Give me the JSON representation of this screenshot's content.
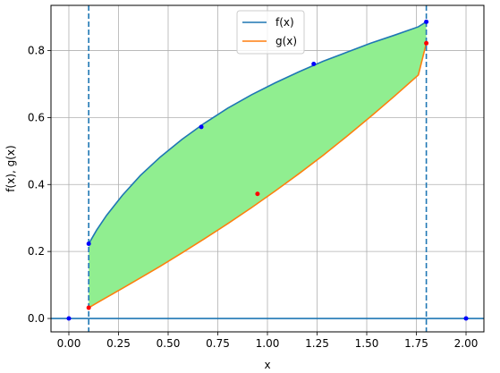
{
  "chart_data": {
    "type": "line",
    "xlabel": "x",
    "ylabel": "f(x), g(x)",
    "xlim": [
      -0.09,
      2.09
    ],
    "ylim": [
      -0.04,
      0.935
    ],
    "grid": true,
    "legend_position": "top-center",
    "x_ticks": [
      0.0,
      0.25,
      0.5,
      0.75,
      1.0,
      1.25,
      1.5,
      1.75,
      2.0
    ],
    "x_tick_labels": [
      "0.00",
      "0.25",
      "0.50",
      "0.75",
      "1.00",
      "1.25",
      "1.50",
      "1.75",
      "2.00"
    ],
    "y_ticks": [
      0.0,
      0.2,
      0.4,
      0.6,
      0.8
    ],
    "y_tick_labels": [
      "0.0",
      "0.2",
      "0.4",
      "0.6",
      "0.8"
    ],
    "x": [
      0.1,
      0.14,
      0.19,
      0.27,
      0.36,
      0.46,
      0.57,
      0.68,
      0.8,
      0.92,
      1.04,
      1.16,
      1.28,
      1.4,
      1.52,
      1.64,
      1.76,
      1.8
    ],
    "series": [
      {
        "name": "f(x)",
        "color": "#1f77b4",
        "values": [
          0.223,
          0.264,
          0.308,
          0.368,
          0.427,
          0.482,
          0.535,
          0.582,
          0.628,
          0.668,
          0.704,
          0.737,
          0.768,
          0.795,
          0.822,
          0.846,
          0.871,
          0.886
        ]
      },
      {
        "name": "g(x)",
        "color": "#ff7f0e",
        "values": [
          0.032,
          0.046,
          0.063,
          0.09,
          0.121,
          0.156,
          0.196,
          0.237,
          0.283,
          0.331,
          0.381,
          0.433,
          0.487,
          0.544,
          0.603,
          0.664,
          0.727,
          0.822
        ]
      }
    ],
    "fill_between": {
      "color": "#90ee90",
      "x_range": [
        0.1,
        1.8
      ]
    },
    "vertical_lines": {
      "color": "#1f77b4",
      "style": "dashed",
      "x": [
        0.1,
        1.8
      ]
    },
    "horizontal_line": {
      "color": "#1f77b4",
      "y": 0.0
    },
    "f_points": {
      "color": "#0000ff",
      "points": [
        [
          0.1,
          0.223
        ],
        [
          0.667,
          0.572
        ],
        [
          1.233,
          0.76
        ],
        [
          1.8,
          0.886
        ],
        [
          0.0,
          0.0
        ],
        [
          2.0,
          0.0
        ]
      ]
    },
    "g_points": {
      "color": "#ff0000",
      "points": [
        [
          0.1,
          0.032
        ],
        [
          0.95,
          0.372
        ],
        [
          1.8,
          0.822
        ]
      ]
    }
  }
}
